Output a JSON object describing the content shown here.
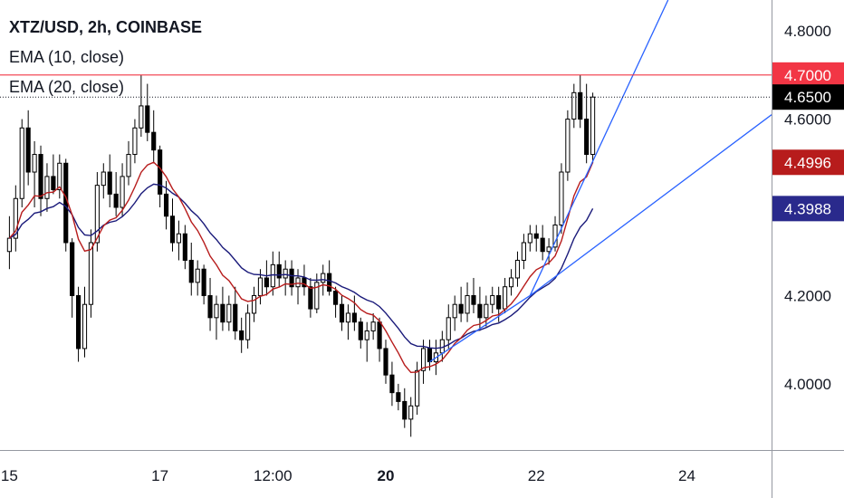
{
  "legend": {
    "title": "XTZ/USD, 2h, COINBASE",
    "ema10": "EMA (10, close)",
    "ema20": "EMA (20, close)"
  },
  "colors": {
    "candle": "#000000",
    "ema10": "#b71c1c",
    "ema20": "#1a1a7a",
    "trendline": "#2962ff",
    "resistance": "#f23645",
    "last_price": "#000000",
    "ema10_badge": "#b71c1c",
    "ema20_badge": "#2a2a8c"
  },
  "chart_data": {
    "type": "candlestick",
    "symbol": "XTZ/USD",
    "interval": "2h",
    "exchange": "COINBASE",
    "y_ticks": [
      "4.8000",
      "4.6000",
      "4.2000",
      "4.0000"
    ],
    "x_ticks": [
      {
        "label": "15",
        "x": 0,
        "bold": false
      },
      {
        "label": "17",
        "x": 24,
        "bold": false
      },
      {
        "label": "12:00",
        "x": 42,
        "bold": false
      },
      {
        "label": "20",
        "x": 60,
        "bold": true
      },
      {
        "label": "22",
        "x": 84,
        "bold": false
      },
      {
        "label": "24",
        "x": 108,
        "bold": false
      }
    ],
    "ylim": [
      3.85,
      4.87
    ],
    "xlim": [
      -1.5,
      121.5
    ],
    "price_labels": {
      "resistance": "4.7000",
      "last": "4.6500",
      "ema10": "4.4996",
      "ema20": "4.3988"
    },
    "resistance_level": 4.7,
    "last_price_level": 4.65,
    "candles": [
      [
        4.3,
        4.38,
        4.26,
        4.33
      ],
      [
        4.33,
        4.45,
        4.3,
        4.42
      ],
      [
        4.42,
        4.6,
        4.4,
        4.58
      ],
      [
        4.58,
        4.62,
        4.45,
        4.48
      ],
      [
        4.48,
        4.55,
        4.4,
        4.52
      ],
      [
        4.52,
        4.54,
        4.38,
        4.42
      ],
      [
        4.42,
        4.5,
        4.39,
        4.47
      ],
      [
        4.47,
        4.52,
        4.43,
        4.44
      ],
      [
        4.44,
        4.52,
        4.42,
        4.5
      ],
      [
        4.5,
        4.51,
        4.3,
        4.32
      ],
      [
        4.32,
        4.33,
        4.15,
        4.2
      ],
      [
        4.2,
        4.22,
        4.05,
        4.08
      ],
      [
        4.08,
        4.22,
        4.06,
        4.18
      ],
      [
        4.18,
        4.35,
        4.15,
        4.32
      ],
      [
        4.32,
        4.48,
        4.3,
        4.45
      ],
      [
        4.45,
        4.5,
        4.42,
        4.48
      ],
      [
        4.48,
        4.52,
        4.4,
        4.43
      ],
      [
        4.43,
        4.48,
        4.38,
        4.4
      ],
      [
        4.4,
        4.5,
        4.38,
        4.47
      ],
      [
        4.47,
        4.55,
        4.45,
        4.52
      ],
      [
        4.52,
        4.6,
        4.5,
        4.58
      ],
      [
        4.58,
        4.7,
        4.56,
        4.63
      ],
      [
        4.63,
        4.68,
        4.55,
        4.57
      ],
      [
        4.57,
        4.62,
        4.5,
        4.53
      ],
      [
        4.53,
        4.54,
        4.4,
        4.43
      ],
      [
        4.43,
        4.46,
        4.35,
        4.38
      ],
      [
        4.38,
        4.42,
        4.3,
        4.32
      ],
      [
        4.32,
        4.37,
        4.28,
        4.34
      ],
      [
        4.34,
        4.36,
        4.26,
        4.28
      ],
      [
        4.28,
        4.32,
        4.2,
        4.23
      ],
      [
        4.23,
        4.28,
        4.2,
        4.26
      ],
      [
        4.26,
        4.27,
        4.18,
        4.2
      ],
      [
        4.2,
        4.24,
        4.12,
        4.15
      ],
      [
        4.15,
        4.2,
        4.1,
        4.18
      ],
      [
        4.18,
        4.22,
        4.12,
        4.14
      ],
      [
        4.14,
        4.2,
        4.12,
        4.18
      ],
      [
        4.18,
        4.22,
        4.1,
        4.12
      ],
      [
        4.12,
        4.15,
        4.07,
        4.1
      ],
      [
        4.1,
        4.18,
        4.08,
        4.16
      ],
      [
        4.16,
        4.22,
        4.14,
        4.2
      ],
      [
        4.2,
        4.26,
        4.18,
        4.24
      ],
      [
        4.24,
        4.28,
        4.2,
        4.22
      ],
      [
        4.22,
        4.3,
        4.2,
        4.27
      ],
      [
        4.27,
        4.3,
        4.22,
        4.24
      ],
      [
        4.24,
        4.28,
        4.2,
        4.26
      ],
      [
        4.26,
        4.28,
        4.2,
        4.22
      ],
      [
        4.22,
        4.26,
        4.18,
        4.24
      ],
      [
        4.24,
        4.27,
        4.2,
        4.22
      ],
      [
        4.22,
        4.24,
        4.15,
        4.17
      ],
      [
        4.17,
        4.25,
        4.16,
        4.23
      ],
      [
        4.23,
        4.27,
        4.2,
        4.25
      ],
      [
        4.25,
        4.28,
        4.2,
        4.21
      ],
      [
        4.21,
        4.22,
        4.15,
        4.18
      ],
      [
        4.18,
        4.2,
        4.12,
        4.14
      ],
      [
        4.14,
        4.18,
        4.1,
        4.16
      ],
      [
        4.16,
        4.2,
        4.12,
        4.14
      ],
      [
        4.14,
        4.15,
        4.08,
        4.1
      ],
      [
        4.1,
        4.14,
        4.05,
        4.12
      ],
      [
        4.12,
        4.16,
        4.1,
        4.14
      ],
      [
        4.14,
        4.15,
        4.05,
        4.08
      ],
      [
        4.08,
        4.1,
        4.0,
        4.02
      ],
      [
        4.02,
        4.05,
        3.95,
        3.98
      ],
      [
        3.98,
        4.0,
        3.94,
        3.96
      ],
      [
        3.96,
        3.99,
        3.9,
        3.92
      ],
      [
        3.92,
        3.97,
        3.88,
        3.95
      ],
      [
        3.95,
        4.05,
        3.93,
        4.03
      ],
      [
        4.03,
        4.1,
        4.0,
        4.08
      ],
      [
        4.08,
        4.1,
        4.03,
        4.05
      ],
      [
        4.05,
        4.1,
        4.02,
        4.07
      ],
      [
        4.07,
        4.12,
        4.05,
        4.1
      ],
      [
        4.1,
        4.18,
        4.08,
        4.15
      ],
      [
        4.15,
        4.2,
        4.12,
        4.18
      ],
      [
        4.18,
        4.22,
        4.14,
        4.16
      ],
      [
        4.16,
        4.23,
        4.14,
        4.2
      ],
      [
        4.2,
        4.24,
        4.16,
        4.18
      ],
      [
        4.18,
        4.22,
        4.12,
        4.15
      ],
      [
        4.15,
        4.2,
        4.13,
        4.18
      ],
      [
        4.18,
        4.22,
        4.16,
        4.2
      ],
      [
        4.2,
        4.22,
        4.14,
        4.17
      ],
      [
        4.17,
        4.24,
        4.16,
        4.22
      ],
      [
        4.22,
        4.26,
        4.2,
        4.24
      ],
      [
        4.24,
        4.3,
        4.22,
        4.28
      ],
      [
        4.28,
        4.34,
        4.26,
        4.32
      ],
      [
        4.32,
        4.36,
        4.3,
        4.34
      ],
      [
        4.34,
        4.36,
        4.3,
        4.33
      ],
      [
        4.33,
        4.36,
        4.28,
        4.3
      ],
      [
        4.3,
        4.33,
        4.27,
        4.31
      ],
      [
        4.31,
        4.38,
        4.3,
        4.36
      ],
      [
        4.36,
        4.5,
        4.34,
        4.48
      ],
      [
        4.48,
        4.62,
        4.46,
        4.6
      ],
      [
        4.6,
        4.68,
        4.58,
        4.66
      ],
      [
        4.66,
        4.7,
        4.58,
        4.6
      ],
      [
        4.6,
        4.68,
        4.5,
        4.52
      ],
      [
        4.52,
        4.66,
        4.5,
        4.65
      ]
    ]
  }
}
